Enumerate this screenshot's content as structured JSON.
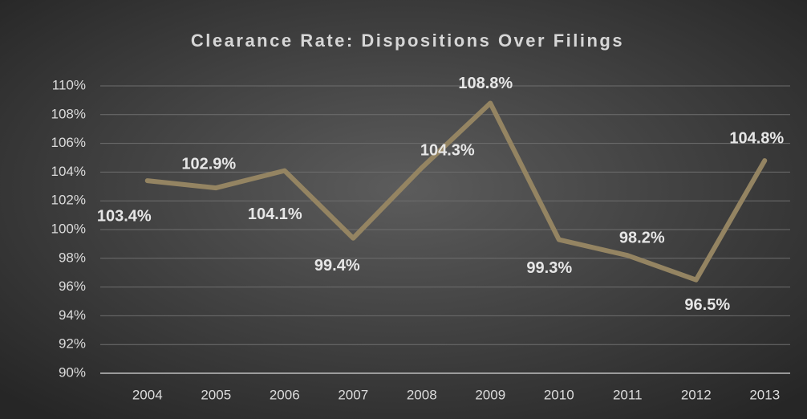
{
  "chart_data": {
    "type": "line",
    "title": "Clearance Rate: Dispositions Over Filings",
    "categories": [
      "2004",
      "2005",
      "2006",
      "2007",
      "2008",
      "2009",
      "2010",
      "2011",
      "2012",
      "2013"
    ],
    "values": [
      103.4,
      102.9,
      104.1,
      99.4,
      104.3,
      108.8,
      99.3,
      98.2,
      96.5,
      104.8
    ],
    "value_labels": [
      "103.4%",
      "102.9%",
      "104.1%",
      "99.4%",
      "104.3%",
      "108.8%",
      "99.3%",
      "98.2%",
      "96.5%",
      "104.8%"
    ],
    "color": "#948462",
    "ylim": [
      90,
      110
    ],
    "yticks": [
      {
        "value": 90,
        "label": "90%"
      },
      {
        "value": 92,
        "label": "92%"
      },
      {
        "value": 94,
        "label": "94%"
      },
      {
        "value": 96,
        "label": "96%"
      },
      {
        "value": 98,
        "label": "98%"
      },
      {
        "value": 100,
        "label": "100%"
      },
      {
        "value": 102,
        "label": "102%"
      },
      {
        "value": 104,
        "label": "104%"
      },
      {
        "value": 106,
        "label": "106%"
      },
      {
        "value": 108,
        "label": "108%"
      },
      {
        "value": 110,
        "label": "110%"
      }
    ],
    "grid": true
  }
}
